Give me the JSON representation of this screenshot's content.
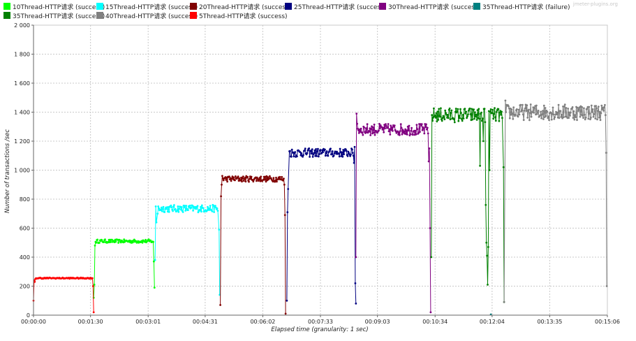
{
  "watermark": "jmeter-plugins.org",
  "chart_data": {
    "type": "line",
    "xlabel": "Elapsed time (granularity: 1 sec)",
    "ylabel": "Number of transactions /sec",
    "ylim": [
      0,
      2000
    ],
    "xlim": [
      0,
      906
    ],
    "grid": true,
    "legend_position": "top",
    "y_ticks": [
      "0",
      "200",
      "400",
      "600",
      "800",
      "1 000",
      "1 200",
      "1 400",
      "1 600",
      "1 800",
      "2 000"
    ],
    "x_ticks": [
      {
        "t": 0,
        "label": "00:00:00"
      },
      {
        "t": 90,
        "label": "00:01:30"
      },
      {
        "t": 181,
        "label": "00:03:01"
      },
      {
        "t": 271,
        "label": "00:04:31"
      },
      {
        "t": 362,
        "label": "00:06:02"
      },
      {
        "t": 453,
        "label": "00:07:33"
      },
      {
        "t": 543,
        "label": "00:09:03"
      },
      {
        "t": 634,
        "label": "00:10:34"
      },
      {
        "t": 724,
        "label": "00:12:04"
      },
      {
        "t": 815,
        "label": "00:13:35"
      },
      {
        "t": 906,
        "label": "00:15:06"
      }
    ],
    "series": [
      {
        "name": "10Thread-HTTP请求 (success)",
        "color": "#00ff00",
        "start": 95,
        "end": 192,
        "level": 510,
        "noise": 12,
        "points": [
          [
            95,
            120
          ],
          [
            96,
            210
          ],
          [
            97,
            480
          ],
          [
            98,
            505
          ],
          [
            189,
            505
          ],
          [
            190,
            370
          ],
          [
            191,
            190
          ]
        ]
      },
      {
        "name": "15Thread-HTTP请求 (success)",
        "color": "#00ffff",
        "start": 192,
        "end": 295,
        "level": 735,
        "noise": 25,
        "points": [
          [
            192,
            380
          ],
          [
            193,
            750
          ],
          [
            194,
            640
          ],
          [
            196,
            700
          ],
          [
            291,
            720
          ],
          [
            293,
            590
          ],
          [
            294,
            140
          ]
        ]
      },
      {
        "name": "20Thread-HTTP请求 (success)",
        "color": "#800000",
        "start": 295,
        "end": 400,
        "level": 940,
        "noise": 20,
        "points": [
          [
            295,
            70
          ],
          [
            296,
            820
          ],
          [
            297,
            900
          ],
          [
            298,
            960
          ],
          [
            396,
            900
          ],
          [
            397,
            690
          ],
          [
            398,
            10
          ]
        ]
      },
      {
        "name": "25Thread-HTTP请求 (success)",
        "color": "#000080",
        "start": 400,
        "end": 509,
        "level": 1120,
        "noise": 30,
        "points": [
          [
            400,
            100
          ],
          [
            401,
            710
          ],
          [
            402,
            870
          ],
          [
            404,
            1130
          ],
          [
            506,
            1050
          ],
          [
            507,
            1160
          ],
          [
            508,
            220
          ],
          [
            509,
            80
          ]
        ]
      },
      {
        "name": "30Thread-HTTP请求 (success)",
        "color": "#800080",
        "start": 509,
        "end": 628,
        "level": 1280,
        "noise": 40,
        "points": [
          [
            509,
            400
          ],
          [
            510,
            1390
          ],
          [
            511,
            1320
          ],
          [
            624,
            1060
          ],
          [
            625,
            1150
          ],
          [
            626,
            600
          ],
          [
            627,
            20
          ]
        ]
      },
      {
        "name": "35Thread-HTTP请求 (failure)",
        "color": "#008080",
        "start": 0,
        "end": 0,
        "level": 0,
        "noise": 0,
        "points": [
          [
            722,
            5
          ]
        ]
      },
      {
        "name": "35Thread-HTTP请求 (success)",
        "color": "#008000",
        "start": 628,
        "end": 745,
        "level": 1380,
        "noise": 50,
        "points": [
          [
            628,
            400
          ],
          [
            629,
            1380
          ],
          [
            630,
            1340
          ],
          [
            705,
            1030
          ],
          [
            710,
            1200
          ],
          [
            714,
            760
          ],
          [
            715,
            500
          ],
          [
            716,
            410
          ],
          [
            717,
            210
          ],
          [
            718,
            470
          ],
          [
            720,
            1000
          ],
          [
            722,
            1420
          ],
          [
            740,
            1360
          ],
          [
            742,
            1020
          ],
          [
            743,
            90
          ]
        ]
      },
      {
        "name": "40Thread-HTTP请求 (success)",
        "color": "#808080",
        "start": 745,
        "end": 906,
        "level": 1400,
        "noise": 55,
        "points": [
          [
            743,
            90
          ],
          [
            745,
            1480
          ],
          [
            746,
            1400
          ],
          [
            903,
            1380
          ],
          [
            904,
            1120
          ],
          [
            905,
            200
          ]
        ]
      },
      {
        "name": "5Thread-HTTP请求 (success)",
        "color": "#ff0000",
        "start": 0,
        "end": 95,
        "level": 255,
        "noise": 4,
        "points": [
          [
            0,
            100
          ],
          [
            1,
            240
          ],
          [
            2,
            230
          ],
          [
            3,
            250
          ],
          [
            93,
            255
          ],
          [
            94,
            200
          ],
          [
            95,
            20
          ]
        ]
      }
    ]
  }
}
